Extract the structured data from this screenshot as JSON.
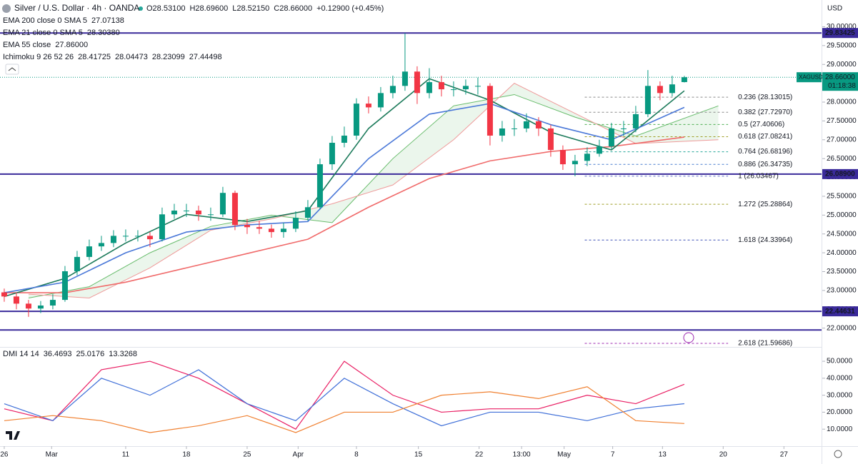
{
  "chart_data": [
    {
      "type": "candlestick",
      "title": "Silver / U.S. Dollar · 4h · OANDA",
      "ohlc_legend": [
        "O28.53100",
        "H28.69600",
        "L28.52150",
        "C28.66000",
        "+0.12900 (+0.45%)"
      ],
      "currency": "USD",
      "xlim": [
        -0.35,
        67.3
      ],
      "xticks": [
        {
          "value": 0,
          "label": "26"
        },
        {
          "value": 3.9,
          "label": "Mar"
        },
        {
          "value": 10,
          "label": "11"
        },
        {
          "value": 15,
          "label": "18"
        },
        {
          "value": 20,
          "label": "25"
        },
        {
          "value": 24.2,
          "label": "Apr"
        },
        {
          "value": 29,
          "label": "8"
        },
        {
          "value": 34.1,
          "label": "15"
        },
        {
          "value": 39.1,
          "label": "22"
        },
        {
          "value": 42.6,
          "label": "13:00"
        },
        {
          "value": 46.1,
          "label": "May"
        },
        {
          "value": 50.1,
          "label": "7"
        },
        {
          "value": 54.2,
          "label": "13"
        },
        {
          "value": 59.2,
          "label": "20"
        },
        {
          "value": 64.2,
          "label": "27"
        }
      ],
      "ylim": [
        21.52,
        30.71
      ],
      "yticks": [
        {
          "value": 30,
          "label": "30.00000"
        },
        {
          "value": 29.5,
          "label": "29.50000"
        },
        {
          "value": 29,
          "label": "29.00000"
        },
        {
          "value": 28.5,
          "label": "28.50000"
        },
        {
          "value": 28,
          "label": "28.00000"
        },
        {
          "value": 27.5,
          "label": "27.50000"
        },
        {
          "value": 27,
          "label": "27.00000"
        },
        {
          "value": 26.5,
          "label": "26.50000"
        },
        {
          "value": 26,
          "label": "26.00000"
        },
        {
          "value": 25.5,
          "label": "25.50000"
        },
        {
          "value": 25,
          "label": "25.00000"
        },
        {
          "value": 24.5,
          "label": "24.50000"
        },
        {
          "value": 24,
          "label": "24.00000"
        },
        {
          "value": 23.5,
          "label": "23.50000"
        },
        {
          "value": 23,
          "label": "23.00000"
        },
        {
          "value": 22.5,
          "label": "22.50000"
        },
        {
          "value": 22,
          "label": "22.00000"
        }
      ],
      "up_color": "#089981",
      "down_color": "#f23645",
      "x": [
        0,
        1,
        2,
        3,
        4,
        5,
        6,
        7,
        8,
        9,
        10,
        11,
        12,
        13,
        14,
        15,
        16,
        17,
        18,
        19,
        20,
        21,
        22,
        23,
        24,
        25,
        26,
        27,
        28,
        29,
        30,
        31,
        32,
        33,
        34,
        35,
        36,
        37,
        38,
        39,
        40,
        41,
        42,
        43,
        44,
        45,
        46,
        47,
        48,
        49,
        50,
        51,
        52,
        53,
        54,
        55,
        56
      ],
      "open": [
        22.95,
        22.84,
        22.65,
        22.52,
        22.6,
        22.75,
        23.51,
        23.89,
        24.17,
        24.26,
        24.45,
        24.45,
        24.45,
        24.36,
        25.02,
        25.12,
        25.12,
        25.02,
        25.02,
        25.59,
        24.74,
        24.68,
        24.64,
        24.55,
        24.64,
        24.93,
        25.21,
        26.35,
        26.92,
        27.11,
        27.96,
        27.86,
        28.24,
        28.43,
        28.81,
        28.24,
        28.53,
        28.34,
        28.34,
        28.43,
        28.43,
        27.11,
        27.3,
        27.3,
        27.49,
        27.3,
        26.73,
        26.35,
        26.44,
        26.63,
        26.82,
        27.3,
        27.3,
        27.68,
        28.43,
        28.24,
        28.531
      ],
      "high": [
        23.05,
        22.95,
        22.75,
        22.72,
        22.9,
        23.65,
        24.05,
        24.35,
        24.45,
        24.6,
        24.62,
        24.6,
        24.55,
        25.2,
        25.3,
        25.3,
        25.25,
        25.2,
        25.75,
        25.65,
        24.9,
        24.85,
        24.75,
        24.8,
        25.1,
        25.4,
        26.5,
        27.1,
        27.35,
        28.1,
        28.15,
        28.4,
        28.7,
        29.83,
        28.95,
        28.9,
        28.7,
        28.55,
        28.6,
        28.65,
        28.5,
        27.5,
        27.55,
        27.7,
        27.6,
        27.4,
        26.85,
        26.6,
        26.8,
        27.0,
        27.45,
        27.5,
        27.9,
        28.85,
        28.55,
        28.7,
        28.696
      ],
      "low": [
        22.7,
        22.5,
        22.3,
        22.4,
        22.5,
        22.7,
        23.4,
        23.8,
        24.05,
        24.15,
        24.3,
        24.3,
        24.15,
        24.3,
        24.9,
        24.95,
        24.85,
        24.85,
        24.95,
        24.6,
        24.5,
        24.5,
        24.4,
        24.4,
        24.55,
        24.85,
        25.15,
        26.2,
        26.8,
        27.0,
        27.7,
        27.75,
        28.1,
        28.3,
        27.95,
        28.1,
        28.15,
        28.15,
        28.2,
        28.2,
        26.85,
        26.95,
        27.1,
        27.2,
        27.1,
        26.55,
        26.2,
        26.03,
        26.3,
        26.55,
        26.75,
        27.1,
        27.2,
        27.6,
        28.05,
        28.15,
        28.5215
      ],
      "close": [
        22.84,
        22.65,
        22.52,
        22.6,
        22.75,
        23.51,
        23.89,
        24.17,
        24.26,
        24.45,
        24.45,
        24.45,
        24.36,
        25.02,
        25.12,
        25.12,
        25.02,
        25.02,
        25.59,
        24.74,
        24.68,
        24.64,
        24.55,
        24.64,
        24.93,
        25.21,
        26.35,
        26.92,
        27.11,
        27.96,
        27.86,
        28.24,
        28.43,
        28.81,
        28.24,
        28.53,
        28.34,
        28.34,
        28.43,
        28.43,
        27.11,
        27.3,
        27.3,
        27.49,
        27.3,
        26.73,
        26.35,
        26.44,
        26.63,
        26.82,
        27.3,
        27.3,
        27.68,
        28.43,
        28.24,
        28.47,
        28.66
      ],
      "overlays": [
        {
          "name": "EMA 200 close 0 SMA 5",
          "value_label": "27.07138",
          "color": "#f06a6a",
          "x": [
            0,
            5,
            10,
            15,
            20,
            25,
            30,
            35,
            40,
            45,
            50,
            56
          ],
          "values": [
            22.94,
            22.94,
            23.22,
            23.6,
            23.98,
            24.36,
            25.21,
            25.97,
            26.44,
            26.69,
            26.82,
            27.07
          ]
        },
        {
          "name": "EMA 21 close 0 SMA 5",
          "value_label": "28.30380",
          "color": "#1b7a5a",
          "x": [
            0,
            5,
            10,
            15,
            20,
            25,
            30,
            35,
            40,
            45,
            50,
            56
          ],
          "values": [
            22.84,
            23.32,
            24.26,
            25.02,
            24.83,
            25.12,
            27.3,
            28.62,
            28.05,
            27.2,
            26.73,
            28.3
          ]
        },
        {
          "name": "EMA 55 close",
          "value_label": "27.86000",
          "color": "#4a78d8",
          "x": [
            0,
            5,
            10,
            15,
            20,
            25,
            30,
            35,
            40,
            45,
            50,
            56
          ],
          "values": [
            22.94,
            23.22,
            24.0,
            24.55,
            24.74,
            24.83,
            26.5,
            27.68,
            27.96,
            27.4,
            27.0,
            27.86
          ]
        }
      ],
      "ichimoku": {
        "name": "Ichimoku 9 26 52 26",
        "value_labels": [
          "28.41725",
          "28.04473",
          "28.23099",
          "27.44498"
        ],
        "label_colors": [
          "#2962ff",
          "#b71c1c",
          "#66bb6a",
          "#ef5350"
        ],
        "x": [
          2,
          7,
          12,
          17,
          22,
          27,
          32,
          37,
          42,
          47,
          52,
          58.8
        ],
        "span_a": [
          22.8,
          23.1,
          24.0,
          24.7,
          25.0,
          24.8,
          26.5,
          27.9,
          28.2,
          27.6,
          27.1,
          27.9
        ],
        "span_b": [
          22.9,
          22.8,
          23.6,
          24.6,
          24.9,
          25.3,
          25.8,
          27.0,
          28.5,
          27.7,
          26.9,
          27.0
        ],
        "span_a_color": "#66bb6a",
        "span_b_color": "#ef9a9a"
      },
      "levels": [
        {
          "value": 29.83425,
          "label": "29.83425"
        },
        {
          "value": 26.089,
          "label": "26.08900"
        },
        {
          "value": 22.44631,
          "label": "22.44631"
        },
        {
          "value": 21.95
        }
      ],
      "level_color": "#3a2a9a",
      "last": {
        "symbol": "XAGUSD",
        "price": {
          "value": 28.66,
          "label": "28.66000"
        },
        "countdown": "01:18:38",
        "color": "#089981"
      },
      "fib": {
        "x_range": [
          47.8,
          59.6
        ],
        "levels": [
          {
            "value": 28.13015,
            "label": "0.236 (28.13015)",
            "color": "#8a8a8a"
          },
          {
            "value": 27.7297,
            "label": "0.382 (27.72970)",
            "color": "#8a8a8a"
          },
          {
            "value": 27.40606,
            "label": "0.5 (27.40606)",
            "color": "#4caf50"
          },
          {
            "value": 27.08241,
            "label": "0.618 (27.08241)",
            "color": "#9e9d24"
          },
          {
            "value": 26.68196,
            "label": "0.764 (26.68196)",
            "color": "#26a69a"
          },
          {
            "value": 26.34735,
            "label": "0.886 (26.34735)",
            "color": "#4a7fcf"
          },
          {
            "value": 26.03467,
            "label": "1 (26.03467)",
            "color": "#5c6bc0"
          },
          {
            "value": 25.28864,
            "label": "1.272 (25.28864)",
            "color": "#9e9d24"
          },
          {
            "value": 24.33964,
            "label": "1.618 (24.33964)",
            "color": "#3f51b5"
          },
          {
            "value": 21.59686,
            "label": "2.618 (21.59686)",
            "color": "#9c27b0"
          }
        ]
      }
    },
    {
      "type": "line",
      "title": "DMI 14 14",
      "ylim": [
        0,
        57.6
      ],
      "yticks": [
        {
          "value": 50,
          "label": "50.0000"
        },
        {
          "value": 40,
          "label": "40.0000"
        },
        {
          "value": 30,
          "label": "30.0000"
        },
        {
          "value": 20,
          "label": "20.0000"
        },
        {
          "value": 10,
          "label": "10.0000"
        }
      ],
      "x": [
        0,
        4,
        8,
        12,
        16,
        20,
        24,
        28,
        32,
        36,
        40,
        44,
        48,
        52,
        56
      ],
      "series": [
        {
          "value_label": "36.4693",
          "color": "#e91e63",
          "values": [
            22,
            15,
            45,
            50,
            40,
            25,
            10,
            50,
            30,
            20,
            22,
            22,
            30,
            25,
            36.47
          ]
        },
        {
          "value_label": "25.0176",
          "color": "#3f6fd8",
          "values": [
            25,
            15,
            40,
            30,
            45,
            25,
            15,
            40,
            25,
            12,
            20,
            20,
            15,
            22,
            25.02
          ]
        },
        {
          "value_label": "13.3268",
          "color": "#f08030",
          "values": [
            15,
            18,
            15,
            8,
            12,
            18,
            8,
            20,
            20,
            30,
            32,
            28,
            35,
            15,
            13.33
          ]
        }
      ]
    }
  ]
}
